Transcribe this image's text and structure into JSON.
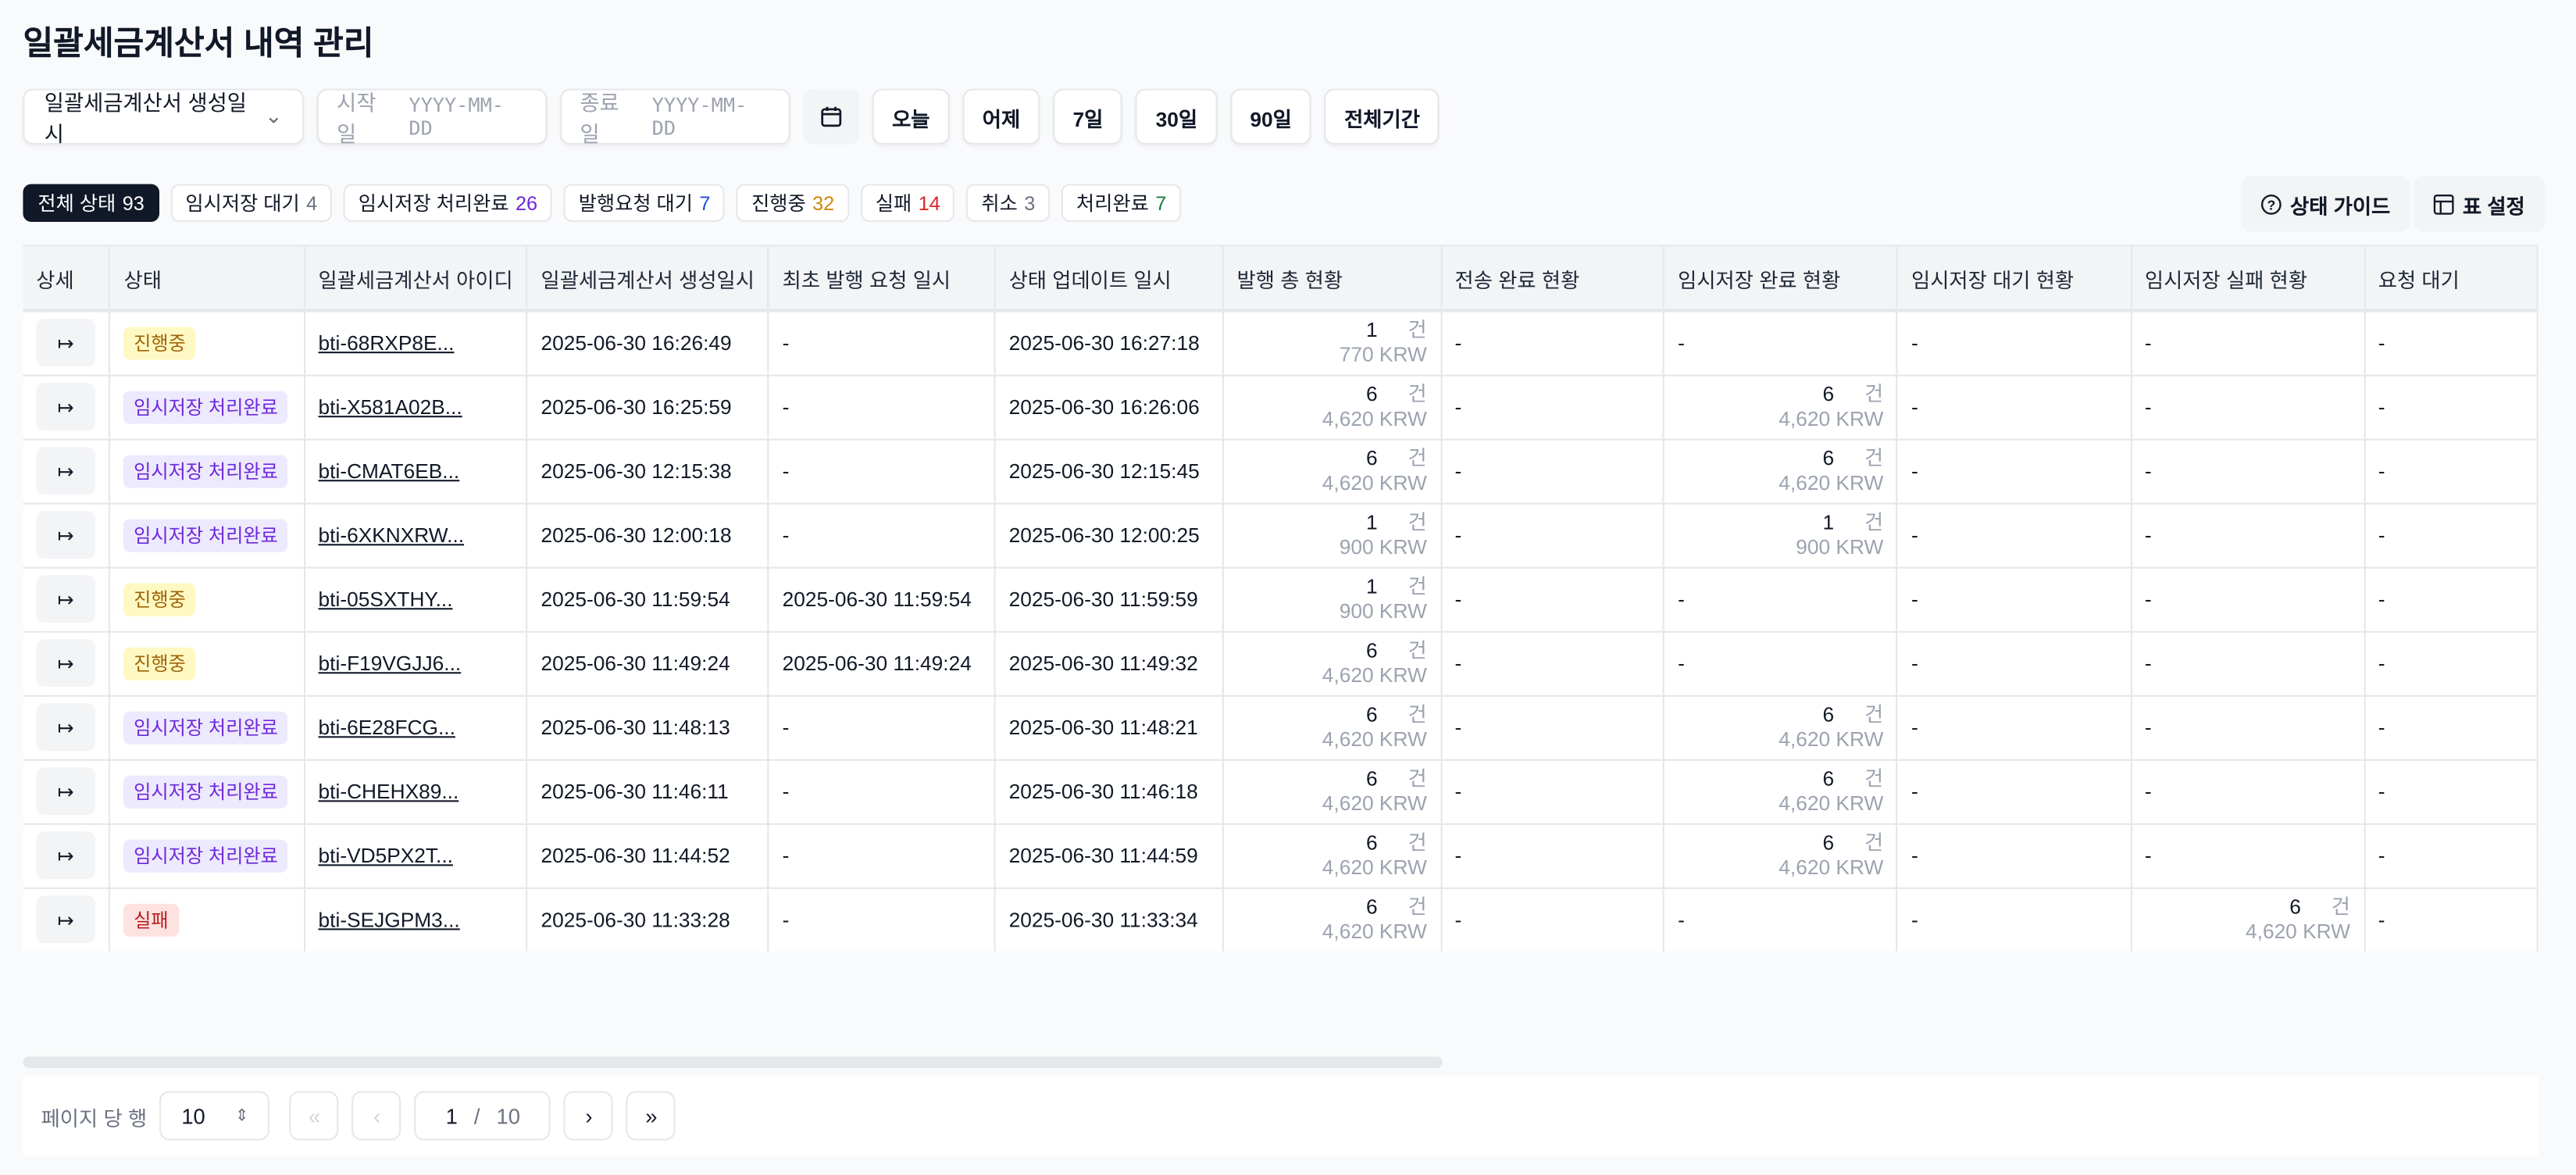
{
  "title": "일괄세금계산서 내역 관리",
  "filters": {
    "date_field": "일괄세금계산서 생성일시",
    "start_label": "시작일",
    "start_placeholder": "YYYY-MM-DD",
    "end_label": "종료일",
    "end_placeholder": "YYYY-MM-DD",
    "quick": [
      "오늘",
      "어제",
      "7일",
      "30일",
      "90일",
      "전체기간"
    ]
  },
  "status_chips": [
    {
      "label": "전체 상태",
      "count": "93",
      "color": "#ffffff"
    },
    {
      "label": "임시저장 대기",
      "count": "4",
      "color": "#6b7280"
    },
    {
      "label": "임시저장 처리완료",
      "count": "26",
      "color": "#6d28d9"
    },
    {
      "label": "발행요청 대기",
      "count": "7",
      "color": "#1d4ed8"
    },
    {
      "label": "진행중",
      "count": "32",
      "color": "#ca8a04"
    },
    {
      "label": "실패",
      "count": "14",
      "color": "#dc2626"
    },
    {
      "label": "취소",
      "count": "3",
      "color": "#6b7280"
    },
    {
      "label": "처리완료",
      "count": "7",
      "color": "#15803d"
    }
  ],
  "toolbar": {
    "guide": "상태 가이드",
    "table_settings": "표 설정"
  },
  "columns": [
    "상세",
    "상태",
    "일괄세금계산서 아이디",
    "일괄세금계산서 생성일시",
    "최초 발행 요청 일시",
    "상태 업데이트 일시",
    "발행 총 현황",
    "전송 완료 현황",
    "임시저장 완료 현황",
    "임시저장 대기 현황",
    "임시저장 실패 현황",
    "요청 대기"
  ],
  "units": {
    "count": "건",
    "currency": "KRW"
  },
  "rows": [
    {
      "status": "진행중",
      "type": "prog",
      "id": "bti-68RXP8E...",
      "created": "2025-06-30 16:26:49",
      "first_req": "-",
      "updated": "2025-06-30 16:27:18",
      "total": {
        "count": "1",
        "amount": "770"
      },
      "sent": "-",
      "tmp_done": null,
      "tmp_wait": "-",
      "tmp_fail": null,
      "req_wait": "-"
    },
    {
      "status": "임시저장 처리완료",
      "type": "tmp",
      "id": "bti-X581A02B...",
      "created": "2025-06-30 16:25:59",
      "first_req": "-",
      "updated": "2025-06-30 16:26:06",
      "total": {
        "count": "6",
        "amount": "4,620"
      },
      "sent": "-",
      "tmp_done": {
        "count": "6",
        "amount": "4,620"
      },
      "tmp_wait": "-",
      "tmp_fail": null,
      "req_wait": "-"
    },
    {
      "status": "임시저장 처리완료",
      "type": "tmp",
      "id": "bti-CMAT6EB...",
      "created": "2025-06-30 12:15:38",
      "first_req": "-",
      "updated": "2025-06-30 12:15:45",
      "total": {
        "count": "6",
        "amount": "4,620"
      },
      "sent": "-",
      "tmp_done": {
        "count": "6",
        "amount": "4,620"
      },
      "tmp_wait": "-",
      "tmp_fail": null,
      "req_wait": "-"
    },
    {
      "status": "임시저장 처리완료",
      "type": "tmp",
      "id": "bti-6XKNXRW...",
      "created": "2025-06-30 12:00:18",
      "first_req": "-",
      "updated": "2025-06-30 12:00:25",
      "total": {
        "count": "1",
        "amount": "900"
      },
      "sent": "-",
      "tmp_done": {
        "count": "1",
        "amount": "900"
      },
      "tmp_wait": "-",
      "tmp_fail": null,
      "req_wait": "-"
    },
    {
      "status": "진행중",
      "type": "prog",
      "id": "bti-05SXTHY...",
      "created": "2025-06-30 11:59:54",
      "first_req": "2025-06-30 11:59:54",
      "updated": "2025-06-30 11:59:59",
      "total": {
        "count": "1",
        "amount": "900"
      },
      "sent": "-",
      "tmp_done": null,
      "tmp_wait": "-",
      "tmp_fail": null,
      "req_wait": "-"
    },
    {
      "status": "진행중",
      "type": "prog",
      "id": "bti-F19VGJJ6...",
      "created": "2025-06-30 11:49:24",
      "first_req": "2025-06-30 11:49:24",
      "updated": "2025-06-30 11:49:32",
      "total": {
        "count": "6",
        "amount": "4,620"
      },
      "sent": "-",
      "tmp_done": null,
      "tmp_wait": "-",
      "tmp_fail": null,
      "req_wait": "-"
    },
    {
      "status": "임시저장 처리완료",
      "type": "tmp",
      "id": "bti-6E28FCG...",
      "created": "2025-06-30 11:48:13",
      "first_req": "-",
      "updated": "2025-06-30 11:48:21",
      "total": {
        "count": "6",
        "amount": "4,620"
      },
      "sent": "-",
      "tmp_done": {
        "count": "6",
        "amount": "4,620"
      },
      "tmp_wait": "-",
      "tmp_fail": null,
      "req_wait": "-"
    },
    {
      "status": "임시저장 처리완료",
      "type": "tmp",
      "id": "bti-CHEHX89...",
      "created": "2025-06-30 11:46:11",
      "first_req": "-",
      "updated": "2025-06-30 11:46:18",
      "total": {
        "count": "6",
        "amount": "4,620"
      },
      "sent": "-",
      "tmp_done": {
        "count": "6",
        "amount": "4,620"
      },
      "tmp_wait": "-",
      "tmp_fail": null,
      "req_wait": "-"
    },
    {
      "status": "임시저장 처리완료",
      "type": "tmp",
      "id": "bti-VD5PX2T...",
      "created": "2025-06-30 11:44:52",
      "first_req": "-",
      "updated": "2025-06-30 11:44:59",
      "total": {
        "count": "6",
        "amount": "4,620"
      },
      "sent": "-",
      "tmp_done": {
        "count": "6",
        "amount": "4,620"
      },
      "tmp_wait": "-",
      "tmp_fail": null,
      "req_wait": "-"
    },
    {
      "status": "실패",
      "type": "fail",
      "id": "bti-SEJGPM3...",
      "created": "2025-06-30 11:33:28",
      "first_req": "-",
      "updated": "2025-06-30 11:33:34",
      "total": {
        "count": "6",
        "amount": "4,620"
      },
      "sent": "-",
      "tmp_done": null,
      "tmp_wait": "-",
      "tmp_fail": {
        "count": "6",
        "amount": "4,620"
      },
      "req_wait": "-"
    }
  ],
  "pagination": {
    "rows_per_page_label": "페이지 당 행",
    "rows_per_page": "10",
    "current": "1",
    "total": "10"
  }
}
